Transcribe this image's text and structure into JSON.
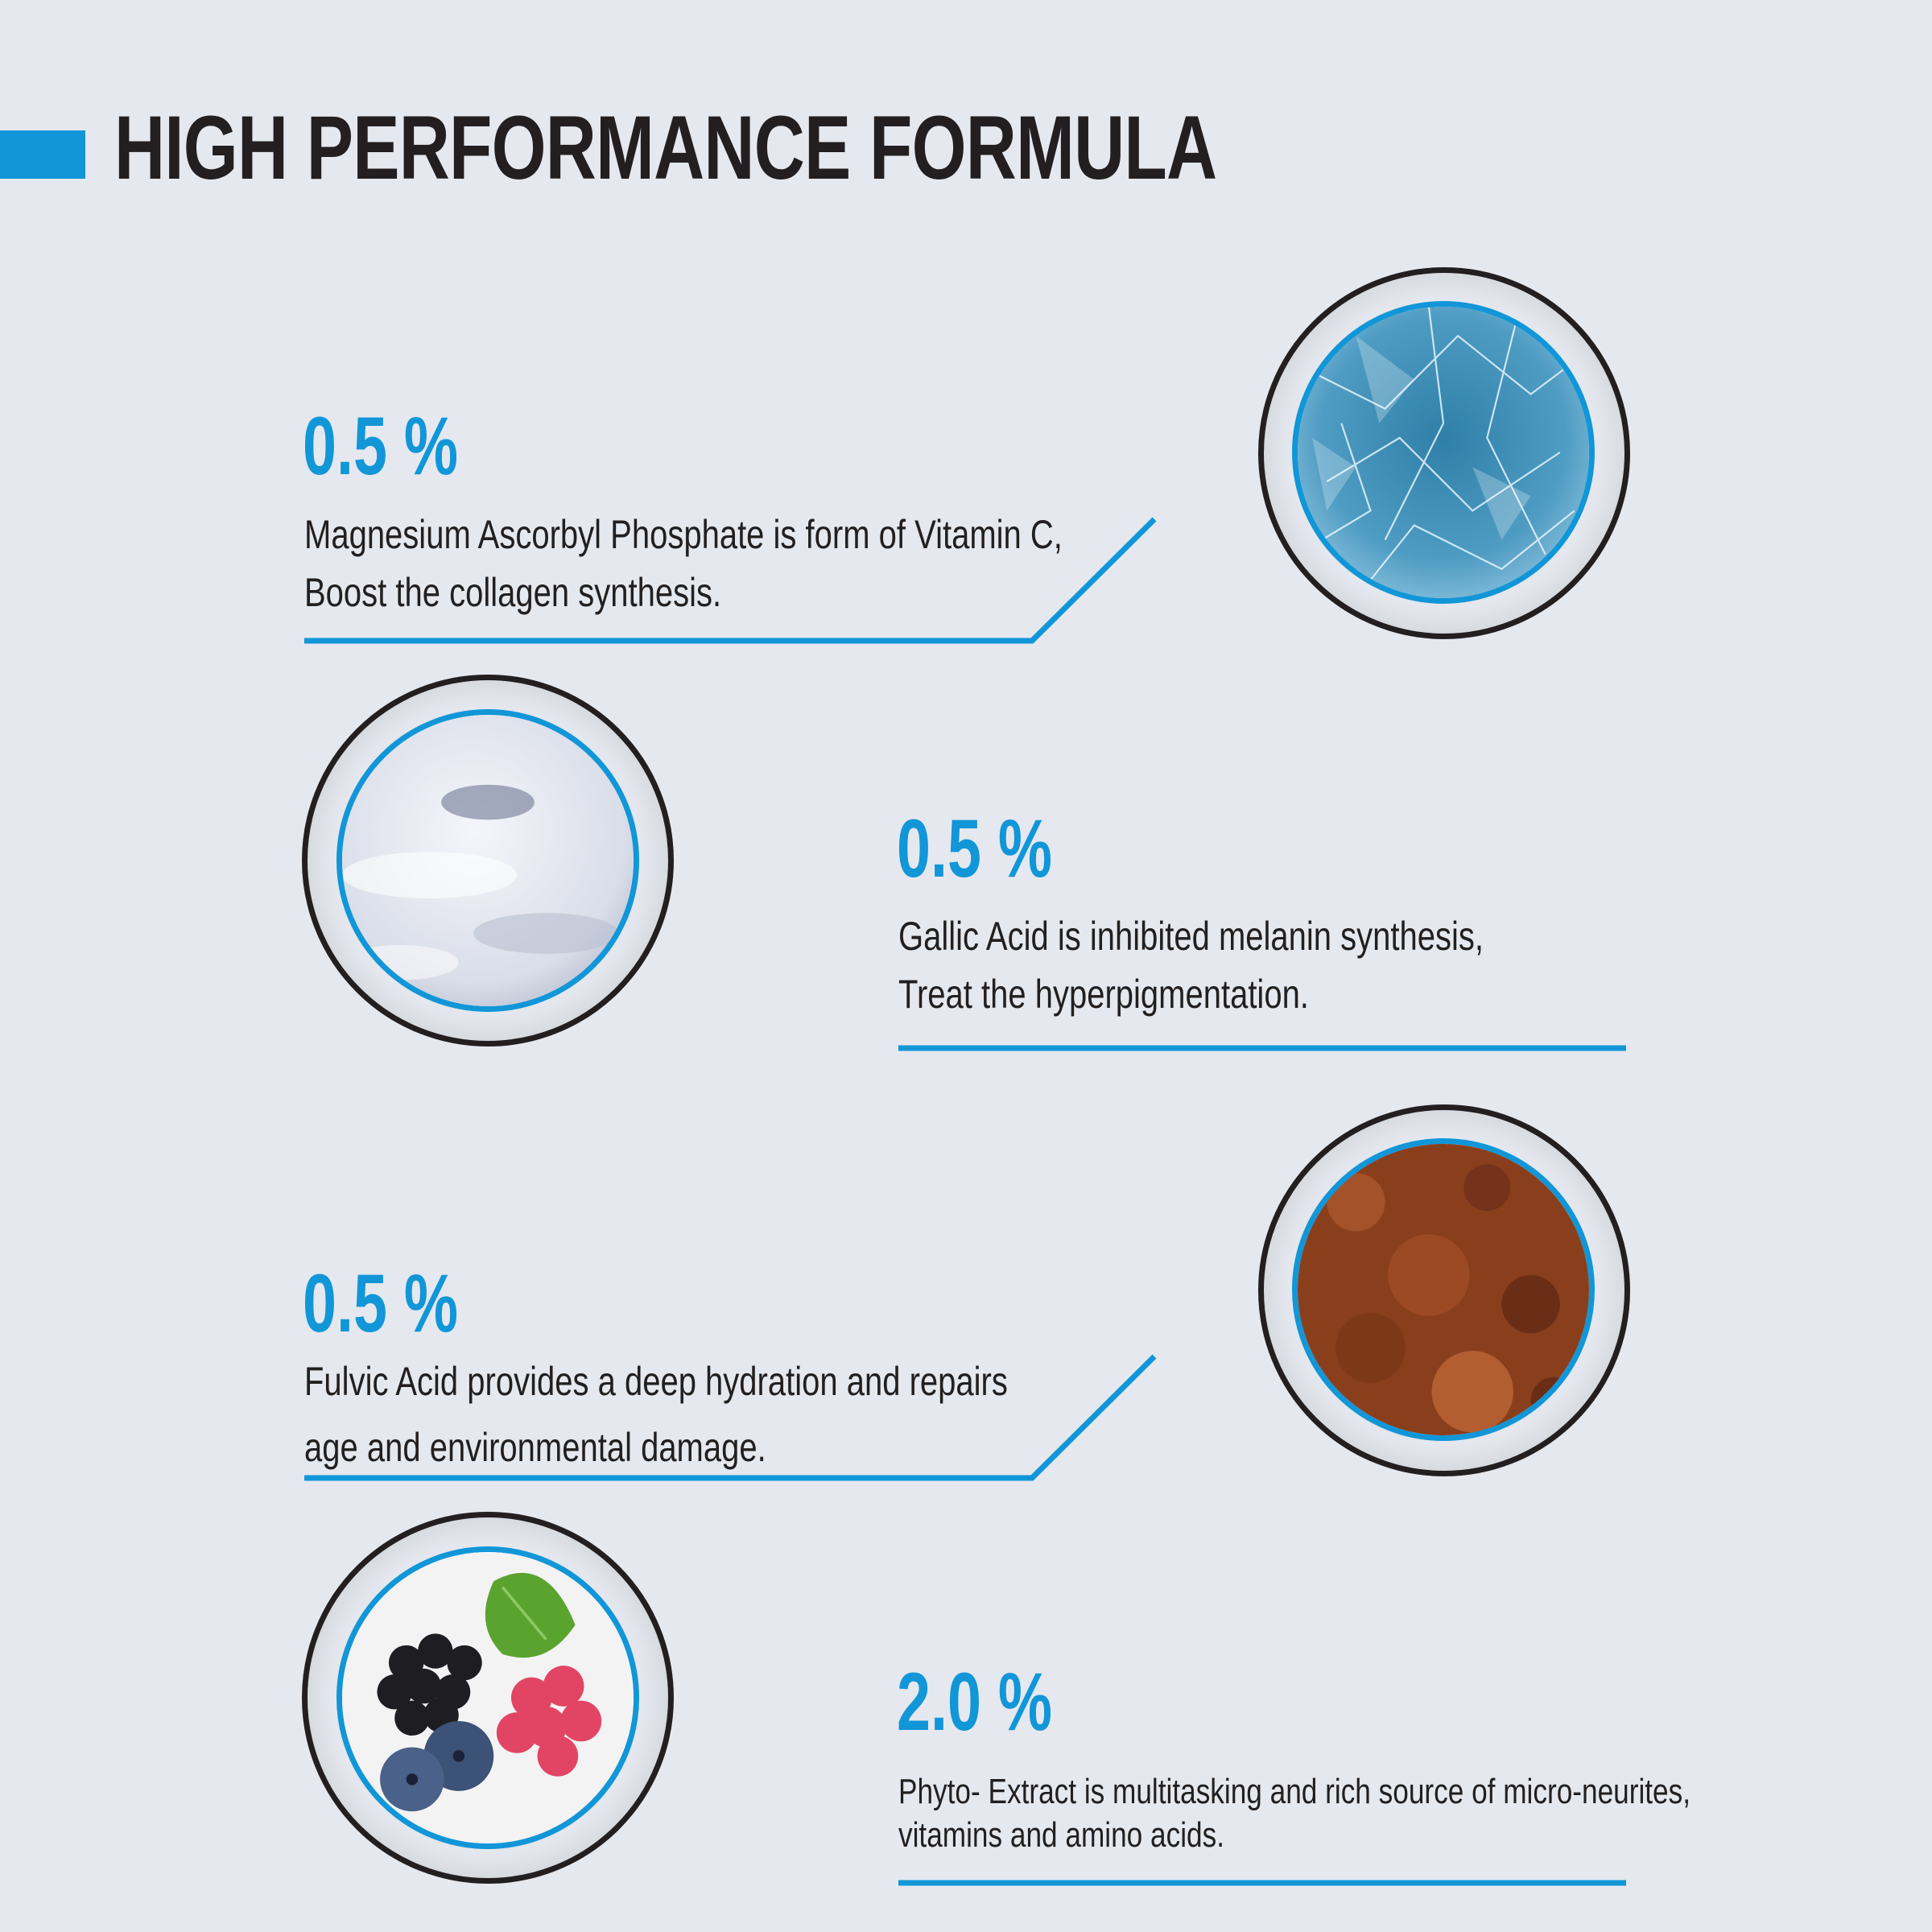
{
  "title": "HIGH PERFORMANCE FORMULA",
  "colors": {
    "accent": "#1196d8",
    "text": "#231f20",
    "background": "#e5e8ee"
  },
  "ingredients": [
    {
      "percent": "0.5 %",
      "lines": [
        "Magnesium Ascorbyl Phosphate is form of Vitamin C,",
        "Boost the collagen synthesis."
      ],
      "image": "ice-crystals-image"
    },
    {
      "percent": "0.5 %",
      "lines": [
        "Gallic Acid is inhibited melanin synthesis,",
        "Treat the hyperpigmentation."
      ],
      "image": "white-powder-image"
    },
    {
      "percent": "0.5 %",
      "lines": [
        "Fulvic Acid provides a deep hydration and repairs",
        "age and environmental damage."
      ],
      "image": "brown-soil-image"
    },
    {
      "percent": "2.0 %",
      "lines": [
        "Phyto- Extract is multitasking and rich source of micro-neurites,",
        "vitamins and amino acids."
      ],
      "image": "mixed-berries-image"
    }
  ]
}
